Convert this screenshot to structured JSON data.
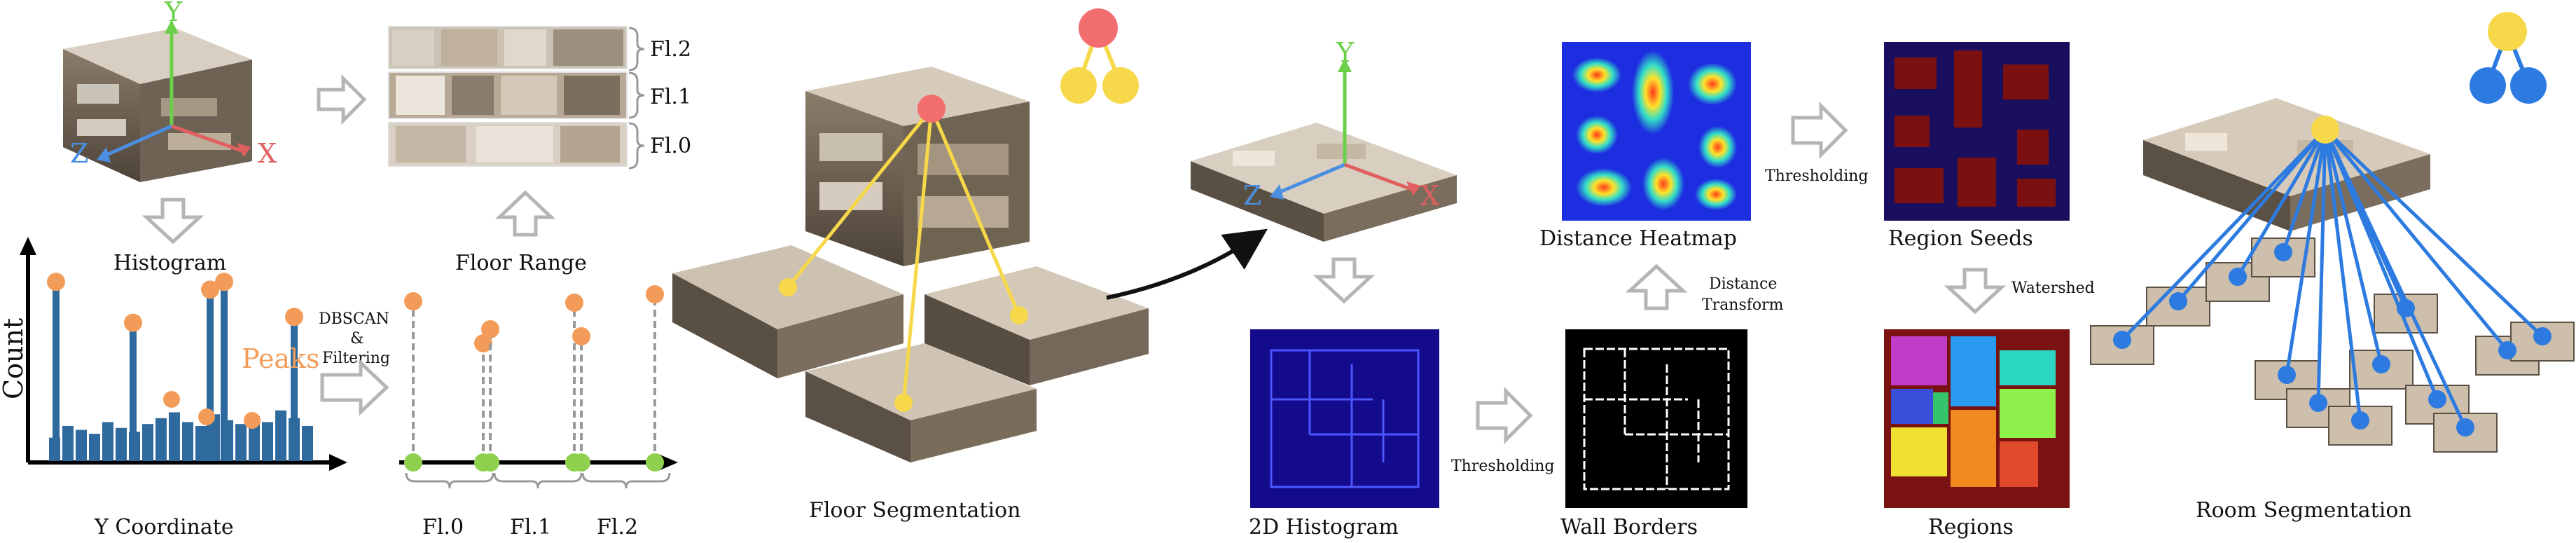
{
  "labels": {
    "histogram": "Histogram",
    "y_coordinate": "Y Coordinate",
    "count": "Count",
    "peaks": "Peaks",
    "dbscan": "DBSCAN",
    "amp": "&",
    "filtering": "Filtering",
    "floor_range": "Floor Range",
    "fl2": "Fl.2",
    "fl1": "Fl.1",
    "fl0": "Fl.0",
    "floor_segmentation": "Floor Segmentation",
    "hist2d": "2D Histogram",
    "thresholding_1": "Thresholding",
    "wall_borders": "Wall Borders",
    "distance": "Distance",
    "transform": "Transform",
    "distance_heatmap": "Distance Heatmap",
    "thresholding_2": "Thresholding",
    "region_seeds": "Region Seeds",
    "watershed": "Watershed",
    "regions": "Regions",
    "room_segmentation": "Room Segmentation",
    "axis_x": "X",
    "axis_y": "Y",
    "axis_z": "Z"
  },
  "histogram": {
    "peak_heights": [
      0.92,
      0.71,
      0.88,
      0.92,
      0.74
    ]
  },
  "colors": {
    "peak": "#f39c5a",
    "bar": "#2f6a9e",
    "green_node": "#8fd14f",
    "red_node": "#f26d6d",
    "yellow_node": "#f7d84a",
    "blue_node": "#2d7be0",
    "arrow_gray": "#b5b5b5",
    "axis_green": "#6ccf4a",
    "axis_blue": "#4a8fe0",
    "axis_red": "#e06060"
  }
}
